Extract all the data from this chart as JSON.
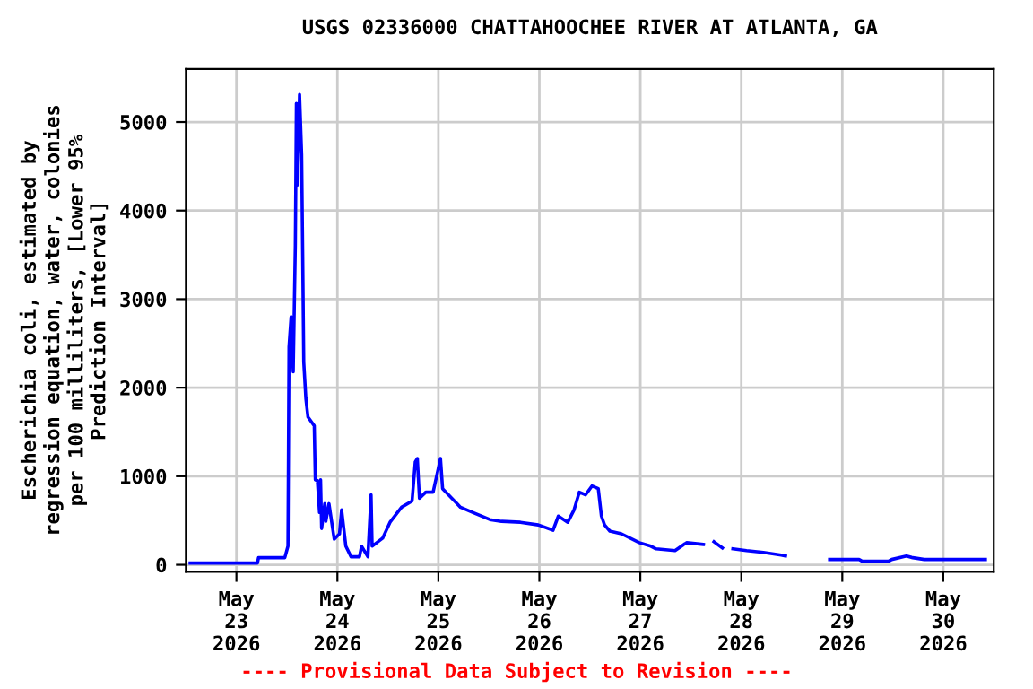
{
  "chart_data": {
    "type": "line",
    "title": "USGS 02336000 CHATTAHOOCHEE RIVER AT ATLANTA, GA",
    "ylabel": "Escherichia coli, estimated by\nregression equation, water, colonies\nper 100 milliliters, [Lower 95%\nPrediction Interval]",
    "annotations": [
      "---- Provisional Data Subject to Revision ----"
    ],
    "xlim": [
      "2026-05-22T12:00",
      "2026-05-30T12:00"
    ],
    "xticks": [
      {
        "value": "2026-05-23",
        "label": "May\n23\n2026"
      },
      {
        "value": "2026-05-24",
        "label": "May\n24\n2026"
      },
      {
        "value": "2026-05-25",
        "label": "May\n25\n2026"
      },
      {
        "value": "2026-05-26",
        "label": "May\n26\n2026"
      },
      {
        "value": "2026-05-27",
        "label": "May\n27\n2026"
      },
      {
        "value": "2026-05-28",
        "label": "May\n28\n2026"
      },
      {
        "value": "2026-05-29",
        "label": "May\n29\n2026"
      },
      {
        "value": "2026-05-30",
        "label": "May\n30\n2026"
      }
    ],
    "ylim": [
      -80,
      5600
    ],
    "yticks": [
      0,
      1000,
      2000,
      3000,
      4000,
      5000
    ],
    "grid": true,
    "legend": false,
    "line_style": "solid",
    "marker": "none",
    "series": [
      {
        "color": "#0000ff",
        "x": [
          "2026-05-22T13:00",
          "2026-05-23T05:00",
          "2026-05-23T05:15",
          "2026-05-23T11:30",
          "2026-05-23T12:15",
          "2026-05-23T12:30",
          "2026-05-23T13:00",
          "2026-05-23T13:30",
          "2026-05-23T14:00",
          "2026-05-23T14:15",
          "2026-05-23T14:30",
          "2026-05-23T14:45",
          "2026-05-23T15:00",
          "2026-05-23T15:30",
          "2026-05-23T15:45",
          "2026-05-23T16:00",
          "2026-05-23T16:30",
          "2026-05-23T17:00",
          "2026-05-23T18:30",
          "2026-05-23T18:45",
          "2026-05-23T19:15",
          "2026-05-23T19:45",
          "2026-05-23T20:00",
          "2026-05-23T20:15",
          "2026-05-23T21:00",
          "2026-05-23T21:15",
          "2026-05-23T22:00",
          "2026-05-23T23:15",
          "2026-05-24T00:30",
          "2026-05-24T01:00",
          "2026-05-24T02:00",
          "2026-05-24T03:15",
          "2026-05-24T05:15",
          "2026-05-24T05:45",
          "2026-05-24T07:15",
          "2026-05-24T08:00",
          "2026-05-24T08:15",
          "2026-05-24T10:45",
          "2026-05-24T12:30",
          "2026-05-24T15:15",
          "2026-05-24T17:45",
          "2026-05-24T18:30",
          "2026-05-24T19:00",
          "2026-05-24T19:30",
          "2026-05-24T21:00",
          "2026-05-24T22:45",
          "2026-05-25T00:30",
          "2026-05-25T01:00",
          "2026-05-25T05:15",
          "2026-05-25T08:15",
          "2026-05-25T12:15",
          "2026-05-25T15:00",
          "2026-05-25T19:30",
          "2026-05-25T23:45",
          "2026-05-26T03:15",
          "2026-05-26T04:30",
          "2026-05-26T06:45",
          "2026-05-26T08:15",
          "2026-05-26T09:30",
          "2026-05-26T11:00",
          "2026-05-26T12:30",
          "2026-05-26T14:00",
          "2026-05-26T14:45",
          "2026-05-26T15:30",
          "2026-05-26T16:45",
          "2026-05-26T19:30",
          "2026-05-26T23:45",
          "2026-05-27T02:30",
          "2026-05-27T03:45",
          "2026-05-27T08:15",
          "2026-05-27T11:00",
          "2026-05-27T15:00",
          "2026-05-27T16:30",
          "2026-05-27T17:30",
          "2026-05-27T19:30",
          "2026-05-27T20:30",
          "2026-05-27T22:00",
          "2026-05-28T01:15",
          "2026-05-28T05:15",
          "2026-05-28T09:30",
          "2026-05-28T10:30",
          "2026-05-28T15:00",
          "2026-05-28T21:00",
          "2026-05-29T04:00",
          "2026-05-29T04:45",
          "2026-05-29T11:00",
          "2026-05-29T11:45",
          "2026-05-29T15:15",
          "2026-05-29T16:45",
          "2026-05-29T19:30",
          "2026-05-30T10:00"
        ],
        "values": [
          20,
          20,
          80,
          80,
          210,
          2460,
          2800,
          2180,
          3610,
          5210,
          4290,
          4800,
          5310,
          4630,
          3500,
          2290,
          1880,
          1670,
          1570,
          960,
          950,
          590,
          960,
          410,
          690,
          490,
          690,
          290,
          350,
          620,
          210,
          90,
          90,
          210,
          90,
          790,
          210,
          300,
          480,
          650,
          720,
          1160,
          1200,
          750,
          820,
          820,
          1200,
          860,
          650,
          590,
          510,
          490,
          480,
          450,
          390,
          550,
          480,
          620,
          820,
          790,
          890,
          860,
          550,
          450,
          380,
          350,
          250,
          210,
          180,
          160,
          250,
          230,
          null,
          260,
          190,
          null,
          180,
          160,
          140,
          110,
          100,
          null,
          60,
          60,
          40,
          40,
          60,
          100,
          80,
          60,
          60
        ]
      }
    ]
  }
}
